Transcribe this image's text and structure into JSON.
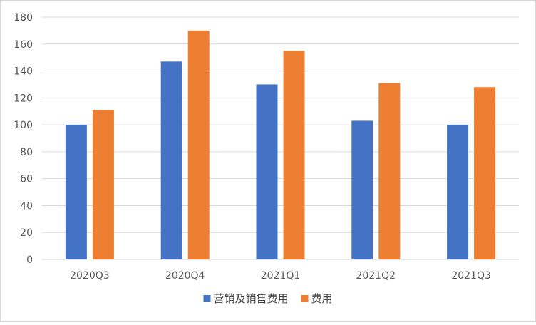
{
  "chart_data": {
    "type": "bar",
    "title": "",
    "xlabel": "",
    "ylabel": "",
    "categories": [
      "2020Q3",
      "2020Q4",
      "2021Q1",
      "2021Q2",
      "2021Q3"
    ],
    "series": [
      {
        "name": "营销及销售费用",
        "color": "#4472c4",
        "values": [
          100,
          147,
          130,
          103,
          100
        ]
      },
      {
        "name": "费用",
        "color": "#ed7d31",
        "values": [
          111,
          170,
          155,
          131,
          128
        ]
      }
    ],
    "ylim": [
      0,
      180
    ],
    "yticks": [
      0,
      20,
      40,
      60,
      80,
      100,
      120,
      140,
      160,
      180
    ],
    "grid": true,
    "legend_position": "bottom"
  }
}
